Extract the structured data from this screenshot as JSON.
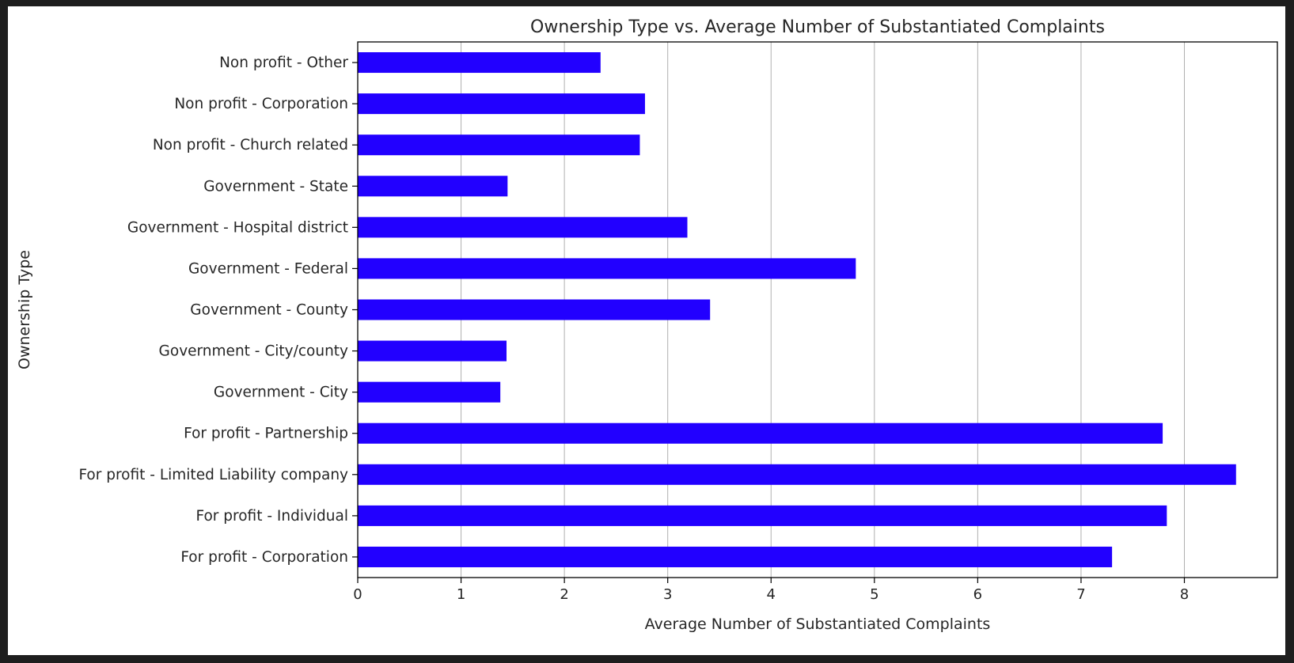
{
  "chart_data": {
    "type": "bar",
    "orientation": "horizontal",
    "title": "Ownership Type vs. Average Number of Substantiated Complaints",
    "xlabel": "Average Number of Substantiated Complaints",
    "ylabel": "Ownership Type",
    "xlim": [
      0,
      8.9
    ],
    "xticks": [
      "0",
      "1",
      "2",
      "3",
      "4",
      "5",
      "6",
      "7",
      "8"
    ],
    "grid": "vertical",
    "bar_color": "#2200ff",
    "categories": [
      "For profit - Corporation",
      "For profit - Individual",
      "For profit - Limited Liability company",
      "For profit - Partnership",
      "Government - City",
      "Government - City/county",
      "Government - County",
      "Government - Federal",
      "Government - Hospital district",
      "Government - State",
      "Non profit - Church related",
      "Non profit - Corporation",
      "Non profit - Other"
    ],
    "values": [
      7.3,
      7.83,
      8.5,
      7.79,
      1.38,
      1.44,
      3.41,
      4.82,
      3.19,
      1.45,
      2.73,
      2.78,
      2.35
    ]
  }
}
